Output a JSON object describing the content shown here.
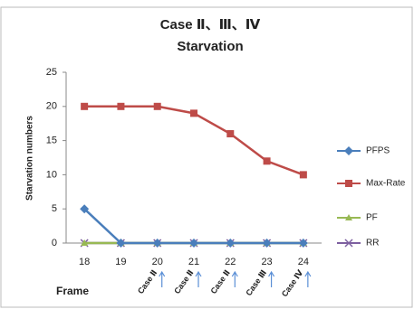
{
  "chart_data": {
    "type": "line",
    "title": "Case Ⅱ、Ⅲ、Ⅳ",
    "subtitle": "Starvation",
    "y_label": "Starvation numbers",
    "x_label": "Frame",
    "categories": [
      "18",
      "19",
      "20",
      "21",
      "22",
      "23",
      "24"
    ],
    "series": [
      {
        "name": "PFPS",
        "color": "#4a7ebb",
        "marker": "diamond",
        "values": [
          5,
          0,
          0,
          0,
          0,
          0,
          0
        ]
      },
      {
        "name": "Max-Rate",
        "color": "#be4b48",
        "marker": "square",
        "values": [
          20,
          20,
          20,
          19,
          16,
          12,
          10
        ]
      },
      {
        "name": "PF",
        "color": "#98b954",
        "marker": "triangle",
        "values": [
          0,
          0,
          0,
          0,
          0,
          0,
          0
        ]
      },
      {
        "name": "RR",
        "color": "#7d60a0",
        "marker": "x",
        "values": [
          0,
          0,
          0,
          0,
          0,
          0,
          0
        ]
      }
    ],
    "annotations": [
      {
        "x": "20",
        "label": "Case Ⅱ"
      },
      {
        "x": "21",
        "label": "Case Ⅱ"
      },
      {
        "x": "22",
        "label": "Case Ⅱ"
      },
      {
        "x": "23",
        "label": "Case Ⅲ"
      },
      {
        "x": "24",
        "label": "Case Ⅳ"
      }
    ],
    "ylim": [
      0,
      25
    ],
    "yticks": [
      0,
      5,
      10,
      15,
      20,
      25
    ],
    "grid": false,
    "legend": "right"
  }
}
